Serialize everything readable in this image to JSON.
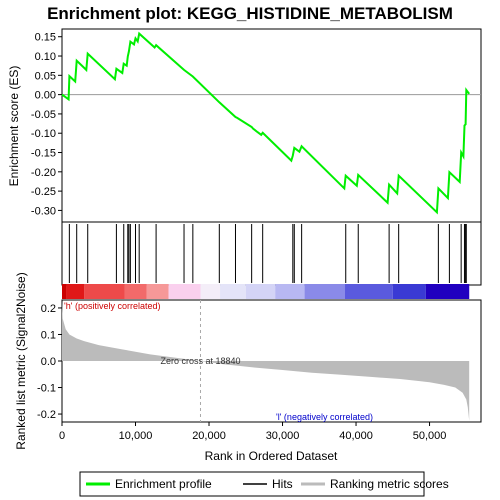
{
  "chart_data": {
    "type": "line",
    "title": "Enrichment plot: KEGG_HISTIDINE_METABOLISM",
    "es_panel": {
      "ylabel": "Enrichment score (ES)",
      "ylim": [
        -0.33,
        0.17
      ],
      "yticks": [
        "0.15",
        "0.10",
        "0.05",
        "0.00",
        "-0.05",
        "-0.10",
        "-0.15",
        "-0.20",
        "-0.25",
        "-0.30"
      ],
      "ytick_values": [
        0.15,
        0.1,
        0.05,
        0.0,
        -0.05,
        -0.1,
        -0.15,
        -0.2,
        -0.25,
        -0.3
      ],
      "color": "#00ee00",
      "points": [
        [
          0,
          0.0
        ],
        [
          900,
          -0.012
        ],
        [
          1000,
          0.048
        ],
        [
          1800,
          0.034
        ],
        [
          2000,
          0.088
        ],
        [
          3300,
          0.064
        ],
        [
          3500,
          0.106
        ],
        [
          7200,
          0.04
        ],
        [
          7400,
          0.067
        ],
        [
          8200,
          0.056
        ],
        [
          8400,
          0.08
        ],
        [
          8800,
          0.075
        ],
        [
          8950,
          0.099
        ],
        [
          9100,
          0.112
        ],
        [
          9300,
          0.137
        ],
        [
          9800,
          0.13
        ],
        [
          10000,
          0.146
        ],
        [
          10300,
          0.138
        ],
        [
          10500,
          0.158
        ],
        [
          12600,
          0.122
        ],
        [
          12800,
          0.128
        ],
        [
          16600,
          0.064
        ],
        [
          17800,
          0.047
        ],
        [
          21400,
          -0.02
        ],
        [
          23600,
          -0.058
        ],
        [
          23800,
          -0.06
        ],
        [
          25800,
          -0.084
        ],
        [
          26000,
          -0.088
        ],
        [
          26600,
          -0.097
        ],
        [
          27100,
          -0.104
        ],
        [
          27300,
          -0.099
        ],
        [
          31200,
          -0.171
        ],
        [
          31400,
          -0.158
        ],
        [
          31600,
          -0.138
        ],
        [
          32300,
          -0.148
        ],
        [
          32600,
          -0.134
        ],
        [
          38400,
          -0.243
        ],
        [
          38600,
          -0.21
        ],
        [
          40100,
          -0.236
        ],
        [
          40300,
          -0.208
        ],
        [
          44300,
          -0.28
        ],
        [
          44500,
          -0.233
        ],
        [
          45600,
          -0.256
        ],
        [
          45800,
          -0.21
        ],
        [
          51000,
          -0.305
        ],
        [
          51200,
          -0.243
        ],
        [
          52500,
          -0.268
        ],
        [
          52700,
          -0.201
        ],
        [
          54100,
          -0.226
        ],
        [
          54300,
          -0.15
        ],
        [
          54600,
          -0.16
        ],
        [
          54750,
          -0.08
        ],
        [
          54900,
          -0.077
        ],
        [
          55000,
          0.012
        ],
        [
          55400,
          0.002
        ]
      ]
    },
    "hits": [
      1000,
      2000,
      3500,
      7400,
      8400,
      8950,
      9100,
      9300,
      10000,
      10500,
      12800,
      16600,
      17800,
      21400,
      23600,
      25800,
      27300,
      31400,
      31600,
      32600,
      38600,
      40300,
      44500,
      45800,
      51200,
      52700,
      54300,
      54750,
      54900,
      55000
    ],
    "metric_panel": {
      "ylabel": "Ranked list metric (Signal2Noise)",
      "ylim": [
        -0.23,
        0.23
      ],
      "yticks": [
        "0.2",
        "0.1",
        "0.0",
        "-0.1",
        "-0.2"
      ],
      "ytick_values": [
        0.2,
        0.1,
        0.0,
        -0.1,
        -0.2
      ],
      "zero_cross_label": "Zero cross at 18840",
      "zero_cross": 18840,
      "pos_label": "'h' (positively correlated)",
      "neg_label": "'l' (negatively correlated)",
      "pos_color": "#cc0000",
      "neg_color": "#0000cc",
      "profile": [
        [
          0,
          0.225
        ],
        [
          100,
          0.16
        ],
        [
          500,
          0.12
        ],
        [
          1000,
          0.1
        ],
        [
          2000,
          0.085
        ],
        [
          3000,
          0.075
        ],
        [
          5000,
          0.06
        ],
        [
          8000,
          0.045
        ],
        [
          12000,
          0.025
        ],
        [
          16000,
          0.01
        ],
        [
          18840,
          0.0
        ],
        [
          22000,
          -0.012
        ],
        [
          26000,
          -0.024
        ],
        [
          30000,
          -0.034
        ],
        [
          34000,
          -0.044
        ],
        [
          38000,
          -0.052
        ],
        [
          42000,
          -0.06
        ],
        [
          46000,
          -0.068
        ],
        [
          50000,
          -0.08
        ],
        [
          52000,
          -0.09
        ],
        [
          53500,
          -0.1
        ],
        [
          54500,
          -0.12
        ],
        [
          55000,
          -0.145
        ],
        [
          55200,
          -0.175
        ],
        [
          55400,
          -0.225
        ]
      ]
    },
    "xaxis": {
      "xlabel": "Rank in Ordered Dataset",
      "xlim": [
        0,
        57000
      ],
      "xticks": [
        "0",
        "10,000",
        "20,000",
        "30,000",
        "40,000",
        "50,000"
      ],
      "xtick_values": [
        0,
        10000,
        20000,
        30000,
        40000,
        50000
      ]
    },
    "heat_bar": {
      "segments": [
        {
          "from": 0,
          "to": 600,
          "color": "#cc0000"
        },
        {
          "from": 600,
          "to": 3000,
          "color": "#e01818"
        },
        {
          "from": 3000,
          "to": 8500,
          "color": "#ee4a4a"
        },
        {
          "from": 8500,
          "to": 11500,
          "color": "#f26a6a"
        },
        {
          "from": 11500,
          "to": 14500,
          "color": "#f69898"
        },
        {
          "from": 14500,
          "to": 18840,
          "color": "#fad0ee"
        },
        {
          "from": 18840,
          "to": 21500,
          "color": "#f4eef8"
        },
        {
          "from": 21500,
          "to": 25000,
          "color": "#e4e4f8"
        },
        {
          "from": 25000,
          "to": 29000,
          "color": "#d4d4f6"
        },
        {
          "from": 29000,
          "to": 33000,
          "color": "#b8b8f2"
        },
        {
          "from": 33000,
          "to": 38500,
          "color": "#8a8ae8"
        },
        {
          "from": 38500,
          "to": 45000,
          "color": "#5a5ade"
        },
        {
          "from": 45000,
          "to": 49500,
          "color": "#3a3ad4"
        },
        {
          "from": 49500,
          "to": 55400,
          "color": "#2000c0"
        }
      ]
    },
    "legend": {
      "position": "bottom",
      "items": [
        {
          "label": "Enrichment profile",
          "color": "#00ee00"
        },
        {
          "label": "Hits",
          "color": "#000000"
        },
        {
          "label": "Ranking metric scores",
          "color": "#bbbbbb"
        }
      ]
    }
  }
}
